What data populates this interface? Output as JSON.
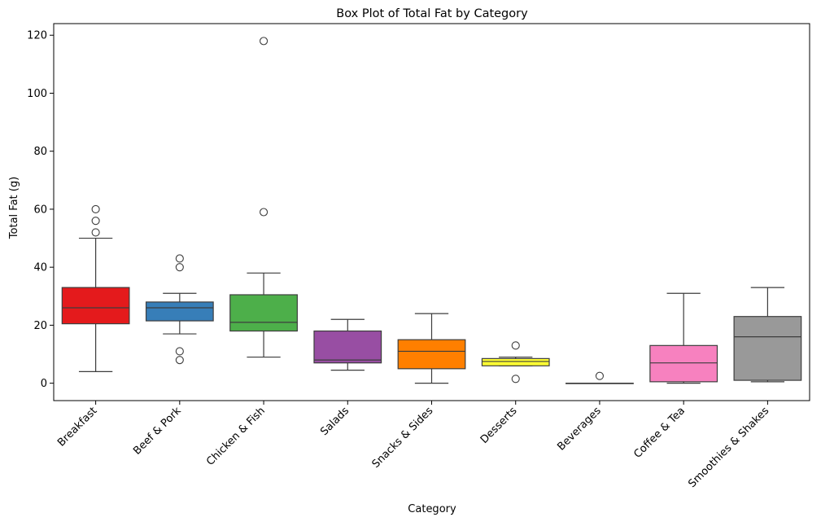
{
  "chart_data": {
    "type": "box",
    "title": "Box Plot of Total Fat by Category",
    "xlabel": "Category",
    "ylabel": "Total Fat (g)",
    "ylim": [
      -6,
      124
    ],
    "yticks": [
      0,
      20,
      40,
      60,
      80,
      100,
      120
    ],
    "grid": false,
    "legend": "none",
    "categories": [
      "Breakfast",
      "Beef & Pork",
      "Chicken & Fish",
      "Salads",
      "Snacks & Sides",
      "Desserts",
      "Beverages",
      "Coffee & Tea",
      "Smoothies & Shakes"
    ],
    "boxes": [
      {
        "category": "Breakfast",
        "color": "#e41a1c",
        "whisker_low": 4,
        "q1": 20.5,
        "median": 26,
        "q3": 33,
        "whisker_high": 50,
        "outliers": [
          52,
          56,
          60
        ]
      },
      {
        "category": "Beef & Pork",
        "color": "#377eb8",
        "whisker_low": 17,
        "q1": 21.5,
        "median": 26,
        "q3": 28,
        "whisker_high": 31,
        "outliers": [
          8,
          11,
          40,
          43
        ]
      },
      {
        "category": "Chicken & Fish",
        "color": "#4daf4a",
        "whisker_low": 9,
        "q1": 18,
        "median": 21,
        "q3": 30.5,
        "whisker_high": 38,
        "outliers": [
          59,
          118
        ]
      },
      {
        "category": "Salads",
        "color": "#984ea3",
        "whisker_low": 4.5,
        "q1": 7,
        "median": 8,
        "q3": 18,
        "whisker_high": 22,
        "outliers": []
      },
      {
        "category": "Snacks & Sides",
        "color": "#ff7f00",
        "whisker_low": 0,
        "q1": 5,
        "median": 11,
        "q3": 15,
        "whisker_high": 24,
        "outliers": []
      },
      {
        "category": "Desserts",
        "color": "#ffff33",
        "whisker_low": 6,
        "q1": 6,
        "median": 7.5,
        "q3": 8.5,
        "whisker_high": 9,
        "outliers": [
          1.5,
          13
        ]
      },
      {
        "category": "Beverages",
        "color": "#a65628",
        "whisker_low": 0,
        "q1": 0,
        "median": 0,
        "q3": 0,
        "whisker_high": 0,
        "outliers": [
          2.5
        ]
      },
      {
        "category": "Coffee & Tea",
        "color": "#f781bf",
        "whisker_low": 0,
        "q1": 0.5,
        "median": 7,
        "q3": 13,
        "whisker_high": 31,
        "outliers": []
      },
      {
        "category": "Smoothies & Shakes",
        "color": "#999999",
        "whisker_low": 0.5,
        "q1": 1,
        "median": 16,
        "q3": 23,
        "whisker_high": 33,
        "outliers": []
      }
    ]
  }
}
